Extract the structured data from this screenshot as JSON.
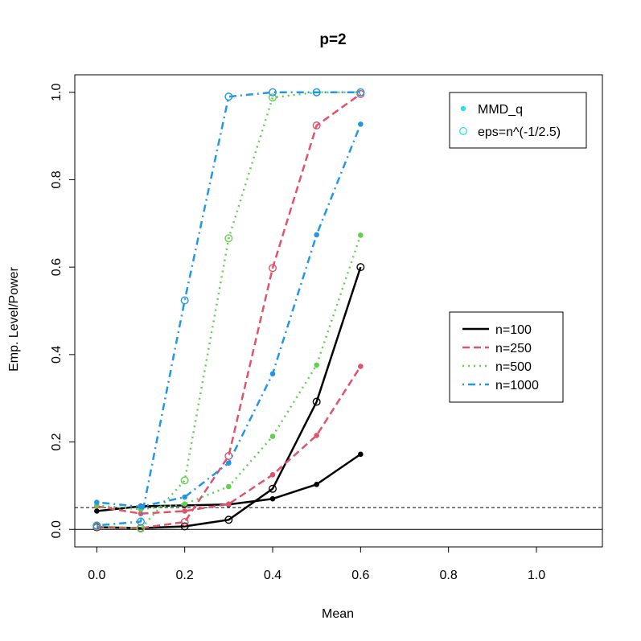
{
  "chart_data": {
    "type": "line",
    "title": "p=2",
    "xlabel": "Mean",
    "ylabel": "Emp. Level/Power",
    "xlim": [
      -0.05,
      1.15
    ],
    "ylim": [
      -0.04,
      1.04
    ],
    "x_ticks": [
      "0.0",
      "0.2",
      "0.4",
      "0.6",
      "0.8",
      "1.0"
    ],
    "y_ticks": [
      "0.0",
      "0.2",
      "0.4",
      "0.6",
      "0.8",
      "1.0"
    ],
    "x": [
      0.0,
      0.1,
      0.2,
      0.3,
      0.4,
      0.5,
      0.6
    ],
    "reference_lines": [
      {
        "y": 0.05,
        "style": "dashed"
      },
      {
        "y": 0.0,
        "style": "solid"
      }
    ],
    "series": [
      {
        "name": "n=100",
        "method": "MMD_q",
        "color": "#000000",
        "dash": "solid",
        "marker": "filled",
        "values": [
          0.042,
          0.053,
          0.055,
          0.057,
          0.07,
          0.103,
          0.172
        ]
      },
      {
        "name": "n=100",
        "method": "eps=n^(-1/2.5)",
        "color": "#000000",
        "dash": "solid",
        "marker": "open",
        "values": [
          0.005,
          0.003,
          0.007,
          0.022,
          0.093,
          0.292,
          0.6
        ]
      },
      {
        "name": "n=250",
        "method": "MMD_q",
        "color": "#DF536B",
        "dash": "dashed",
        "marker": "filled",
        "values": [
          0.053,
          0.036,
          0.042,
          0.058,
          0.125,
          0.215,
          0.373
        ]
      },
      {
        "name": "n=250",
        "method": "eps=n^(-1/2.5)",
        "color": "#DF536B",
        "dash": "dashed",
        "marker": "open",
        "values": [
          0.006,
          0.003,
          0.017,
          0.168,
          0.598,
          0.924,
          0.996
        ]
      },
      {
        "name": "n=500",
        "method": "MMD_q",
        "color": "#61D04F",
        "dash": "dotted",
        "marker": "filled",
        "values": [
          0.055,
          0.046,
          0.058,
          0.098,
          0.213,
          0.376,
          0.673
        ]
      },
      {
        "name": "n=500",
        "method": "eps=n^(-1/2.5)",
        "color": "#61D04F",
        "dash": "dotted",
        "marker": "open",
        "values": [
          0.008,
          0.002,
          0.112,
          0.666,
          0.988,
          1.0,
          1.0
        ]
      },
      {
        "name": "n=1000",
        "method": "MMD_q",
        "color": "#2297E6",
        "dash": "dotdash",
        "marker": "filled",
        "values": [
          0.062,
          0.052,
          0.074,
          0.152,
          0.356,
          0.674,
          0.927
        ]
      },
      {
        "name": "n=1000",
        "method": "eps=n^(-1/2.5)",
        "color": "#2297E6",
        "dash": "dotdash",
        "marker": "open",
        "values": [
          0.009,
          0.018,
          0.524,
          0.99,
          1.0,
          1.0,
          1.0
        ]
      }
    ],
    "legend_method": {
      "placement": "top-right",
      "entries": [
        {
          "label": "MMD_q",
          "marker": "filled",
          "color": "#28E2E5"
        },
        {
          "label": "eps=n^(-1/2.5)",
          "marker": "open",
          "color": "#28E2E5"
        }
      ]
    },
    "legend_n": {
      "placement": "right",
      "entries": [
        {
          "label": "n=100",
          "color": "#000000",
          "dash": "solid"
        },
        {
          "label": "n=250",
          "color": "#DF536B",
          "dash": "dashed"
        },
        {
          "label": "n=500",
          "color": "#61D04F",
          "dash": "dotted"
        },
        {
          "label": "n=1000",
          "color": "#2297E6",
          "dash": "dotdash"
        }
      ]
    }
  }
}
